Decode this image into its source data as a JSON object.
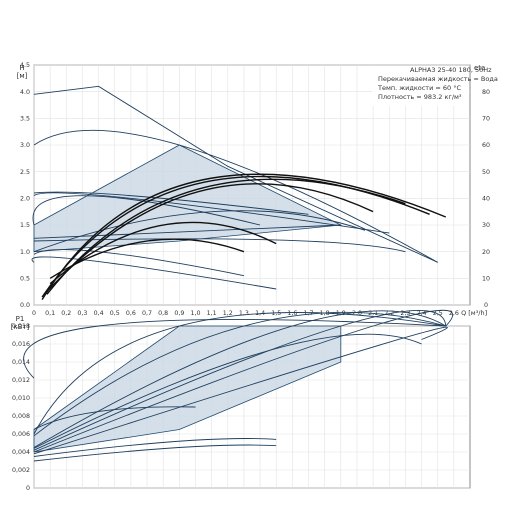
{
  "chart_data": [
    {
      "type": "line",
      "panel": "head-and-efficiency",
      "ylabel_lines": [
        "H",
        "[м]"
      ],
      "y2label": "eta",
      "xlabel": "Q [м³/h]",
      "xlim": [
        0,
        2.7
      ],
      "ylim": [
        0,
        4.5
      ],
      "y2lim": [
        0,
        90
      ],
      "x_ticks": [
        "0",
        "0,1",
        "0,2",
        "0,3",
        "0,4",
        "0,5",
        "0,6",
        "0,7",
        "0,8",
        "0,9",
        "1,0",
        "1,1",
        "1,2",
        "1,3",
        "1,4",
        "1,5",
        "1,6",
        "1,7",
        "1,8",
        "1,9",
        "2,0",
        "2,1",
        "2,2",
        "2,3",
        "2,4",
        "2,5",
        "2,6"
      ],
      "y_ticks": [
        "0.0",
        "0.5",
        "1.0",
        "1.5",
        "2.0",
        "2.5",
        "3.0",
        "3.5",
        "4.0",
        "4.5"
      ],
      "y2_ticks": [
        "0",
        "10",
        "20",
        "30",
        "40",
        "50",
        "60",
        "70",
        "80"
      ],
      "info_lines": [
        "ALPHA3 25-40 180, 50Hz",
        "Перекачиваемая жидкость = Вода",
        "Темп. жидкости = 60 °C",
        "Плотность = 983.2 кг/м³"
      ],
      "shaded_region": {
        "x": [
          0,
          0.9,
          1.9,
          0.9,
          0
        ],
        "y": [
          1.5,
          3.0,
          1.5,
          1.2,
          1.0
        ]
      },
      "head_series": [
        {
          "x": [
            0,
            0.4,
            1.2,
            2.5
          ],
          "y": [
            3.95,
            4.1,
            2.6,
            0.8
          ]
        },
        {
          "x": [
            0,
            0.9,
            2.5
          ],
          "y": [
            3.0,
            3.0,
            0.8
          ]
        },
        {
          "x": [
            0,
            0.6,
            1.7
          ],
          "y": [
            2.1,
            2.05,
            1.7
          ]
        },
        {
          "x": [
            0,
            0.6,
            2.2
          ],
          "y": [
            2.05,
            2.0,
            1.35
          ]
        },
        {
          "x": [
            0,
            1.9
          ],
          "y": [
            1.25,
            1.5
          ]
        },
        {
          "x": [
            0,
            1.5,
            2.3
          ],
          "y": [
            1.2,
            1.22,
            1.0
          ]
        },
        {
          "x": [
            0,
            0.3,
            1.4
          ],
          "y": [
            1.5,
            2.05,
            1.5
          ]
        },
        {
          "x": [
            0,
            1.1,
            2.05
          ],
          "y": [
            1.0,
            1.75,
            1.4
          ]
        },
        {
          "x": [
            0,
            0.3,
            1.5
          ],
          "y": [
            0.8,
            0.85,
            0.3
          ]
        },
        {
          "x": [
            0,
            0.4,
            1.3
          ],
          "y": [
            0.95,
            1.0,
            0.55
          ]
        }
      ],
      "efficiency_series": [
        {
          "x": [
            0.05,
            1.05,
            2.55
          ],
          "y": [
            2,
            47,
            33
          ]
        },
        {
          "x": [
            0.05,
            1.05,
            2.45
          ],
          "y": [
            3,
            46,
            34
          ]
        },
        {
          "x": [
            0.08,
            1.05,
            2.3
          ],
          "y": [
            4,
            44,
            38
          ]
        },
        {
          "x": [
            0.08,
            1.05,
            2.1
          ],
          "y": [
            5,
            43,
            35
          ]
        },
        {
          "x": [
            0.1,
            0.8,
            1.5
          ],
          "y": [
            8,
            30,
            23
          ]
        },
        {
          "x": [
            0.1,
            0.7,
            1.3
          ],
          "y": [
            10,
            24,
            20
          ]
        }
      ]
    },
    {
      "type": "line",
      "panel": "power",
      "ylabel_lines": [
        "P1",
        "[кВт]"
      ],
      "xlim": [
        0,
        2.7
      ],
      "ylim": [
        0,
        0.018
      ],
      "y_ticks": [
        "0",
        "0,002",
        "0,004",
        "0,006",
        "0,008",
        "0,010",
        "0,012",
        "0,014",
        "0,016",
        "0,018"
      ],
      "shaded_region": {
        "x": [
          0,
          0.9,
          1.9,
          1.9,
          0.9,
          0
        ],
        "y": [
          0.0065,
          0.018,
          0.018,
          0.014,
          0.0065,
          0.004
        ]
      },
      "power_series": [
        {
          "x": [
            0,
            0.4,
            2.55
          ],
          "y": [
            0.0122,
            0.018,
            0.018
          ]
        },
        {
          "x": [
            0,
            0.9,
            2.55
          ],
          "y": [
            0.006,
            0.018,
            0.018
          ]
        },
        {
          "x": [
            0,
            1.3,
            2.55
          ],
          "y": [
            0.0058,
            0.018,
            0.018
          ]
        },
        {
          "x": [
            0,
            1.6,
            2.55
          ],
          "y": [
            0.0045,
            0.018,
            0.018
          ]
        },
        {
          "x": [
            0,
            1.9,
            2.55
          ],
          "y": [
            0.0042,
            0.018,
            0.018
          ]
        },
        {
          "x": [
            0,
            2.1,
            2.55
          ],
          "y": [
            0.004,
            0.018,
            0.018
          ]
        },
        {
          "x": [
            0,
            2.2,
            2.4
          ],
          "y": [
            0.0038,
            0.0162,
            0.0165
          ]
        },
        {
          "x": [
            0,
            1.5,
            2.4
          ],
          "y": [
            0.0044,
            0.0155,
            0.016
          ]
        },
        {
          "x": [
            0,
            0.9,
            1.5
          ],
          "y": [
            0.0035,
            0.0052,
            0.0054
          ]
        },
        {
          "x": [
            0,
            0.9,
            1.5
          ],
          "y": [
            0.003,
            0.0045,
            0.0047
          ]
        },
        {
          "x": [
            0,
            0.4,
            1.0
          ],
          "y": [
            0.0065,
            0.0085,
            0.009
          ]
        }
      ]
    }
  ]
}
